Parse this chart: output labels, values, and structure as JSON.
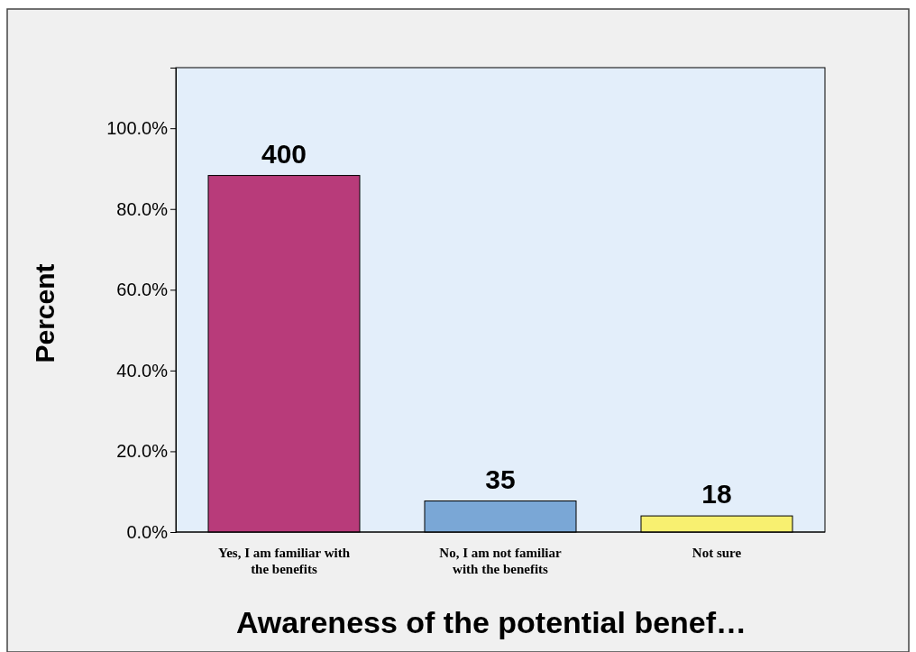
{
  "chart_data": {
    "type": "bar",
    "xlabel": "Awareness of the potential benef…",
    "ylabel": "Percent",
    "categories": [
      "Yes, I am familiar with the benefits",
      "No, I am not familiar with the benefits",
      "Not sure"
    ],
    "values": [
      88.3,
      7.7,
      4.0
    ],
    "colors": [
      "#b83b7a",
      "#7aa7d6",
      "#f8f070"
    ],
    "annotations": [
      {
        "text": "400",
        "x": "Yes, I am familiar with the benefits",
        "y": 88.3
      },
      {
        "text": "35",
        "x": "No, I am not familiar with the benefits",
        "y": 7.7
      },
      {
        "text": "18",
        "x": "Not sure",
        "y": 4.0
      }
    ],
    "ylim": [
      0,
      115
    ],
    "yticks": [
      {
        "value": 0,
        "label": "0.0%"
      },
      {
        "value": 20,
        "label": "20.0%"
      },
      {
        "value": 40,
        "label": "40.0%"
      },
      {
        "value": 60,
        "label": "60.0%"
      },
      {
        "value": 80,
        "label": "80.0%"
      },
      {
        "value": 100,
        "label": "100.0%"
      }
    ],
    "grid": false
  }
}
